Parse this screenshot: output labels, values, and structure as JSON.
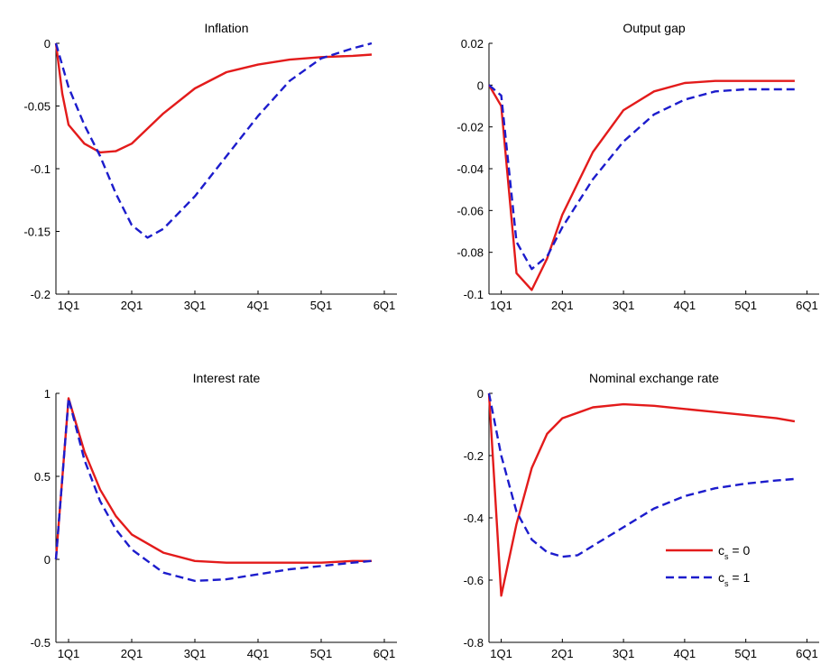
{
  "chart_data": [
    {
      "type": "line",
      "title": "Inflation",
      "xlim": [
        0.8,
        6.2
      ],
      "ylim": [
        -0.2,
        0
      ],
      "xticks": [
        1,
        2,
        3,
        4,
        5,
        6
      ],
      "xtick_labels": [
        "1Q1",
        "2Q1",
        "3Q1",
        "4Q1",
        "5Q1",
        "6Q1"
      ],
      "yticks": [
        0,
        -0.05,
        -0.1,
        -0.15,
        -0.2
      ],
      "ytick_labels": [
        "0",
        "-0.05",
        "-0.1",
        "-0.15",
        "-0.2"
      ],
      "series": [
        {
          "style": "solid",
          "color": "#e31b1b",
          "x": [
            0.8,
            0.9,
            1.0,
            1.25,
            1.5,
            1.75,
            2.0,
            2.5,
            3.0,
            3.5,
            4.0,
            4.5,
            5.0,
            5.5,
            5.8
          ],
          "y": [
            0,
            -0.04,
            -0.065,
            -0.08,
            -0.087,
            -0.086,
            -0.08,
            -0.056,
            -0.036,
            -0.023,
            -0.017,
            -0.013,
            -0.011,
            -0.01,
            -0.009
          ]
        },
        {
          "style": "dashed",
          "color": "#1c1ccc",
          "x": [
            0.8,
            1.0,
            1.25,
            1.5,
            1.75,
            2.0,
            2.25,
            2.5,
            3.0,
            3.5,
            4.0,
            4.5,
            5.0,
            5.5,
            5.8
          ],
          "y": [
            0,
            -0.035,
            -0.065,
            -0.09,
            -0.12,
            -0.145,
            -0.155,
            -0.148,
            -0.122,
            -0.09,
            -0.058,
            -0.03,
            -0.012,
            -0.004,
            0
          ]
        }
      ]
    },
    {
      "type": "line",
      "title": "Output gap",
      "xlim": [
        0.8,
        6.2
      ],
      "ylim": [
        -0.1,
        0.02
      ],
      "xticks": [
        1,
        2,
        3,
        4,
        5,
        6
      ],
      "xtick_labels": [
        "1Q1",
        "2Q1",
        "3Q1",
        "4Q1",
        "5Q1",
        "6Q1"
      ],
      "yticks": [
        0.02,
        0,
        -0.02,
        -0.04,
        -0.06,
        -0.08,
        -0.1
      ],
      "ytick_labels": [
        "0.02",
        "0",
        "-0.02",
        "-0.04",
        "-0.06",
        "-0.08",
        "-0.1"
      ],
      "series": [
        {
          "style": "solid",
          "color": "#e31b1b",
          "x": [
            0.8,
            1.0,
            1.25,
            1.5,
            1.75,
            2.0,
            2.5,
            3.0,
            3.5,
            4.0,
            4.5,
            5.0,
            5.5,
            5.8
          ],
          "y": [
            0,
            -0.01,
            -0.09,
            -0.098,
            -0.083,
            -0.062,
            -0.032,
            -0.012,
            -0.003,
            0.001,
            0.002,
            0.002,
            0.002,
            0.002
          ]
        },
        {
          "style": "dashed",
          "color": "#1c1ccc",
          "x": [
            0.8,
            1.0,
            1.25,
            1.5,
            1.75,
            2.0,
            2.5,
            3.0,
            3.5,
            4.0,
            4.5,
            5.0,
            5.5,
            5.8
          ],
          "y": [
            0,
            -0.005,
            -0.075,
            -0.088,
            -0.082,
            -0.068,
            -0.045,
            -0.027,
            -0.014,
            -0.007,
            -0.003,
            -0.002,
            -0.002,
            -0.002
          ]
        }
      ]
    },
    {
      "type": "line",
      "title": "Interest rate",
      "xlim": [
        0.8,
        6.2
      ],
      "ylim": [
        -0.5,
        1
      ],
      "xticks": [
        1,
        2,
        3,
        4,
        5,
        6
      ],
      "xtick_labels": [
        "1Q1",
        "2Q1",
        "3Q1",
        "4Q1",
        "5Q1",
        "6Q1"
      ],
      "yticks": [
        1,
        0.5,
        0,
        -0.5
      ],
      "ytick_labels": [
        "1",
        "0.5",
        "0",
        "-0.5"
      ],
      "series": [
        {
          "style": "solid",
          "color": "#e31b1b",
          "x": [
            0.8,
            1.0,
            1.25,
            1.5,
            1.75,
            2.0,
            2.5,
            3.0,
            3.5,
            4.0,
            4.5,
            5.0,
            5.5,
            5.8
          ],
          "y": [
            0,
            0.97,
            0.65,
            0.42,
            0.26,
            0.15,
            0.04,
            -0.01,
            -0.02,
            -0.02,
            -0.02,
            -0.02,
            -0.01,
            -0.01
          ]
        },
        {
          "style": "dashed",
          "color": "#1c1ccc",
          "x": [
            0.8,
            1.0,
            1.25,
            1.5,
            1.75,
            2.0,
            2.5,
            3.0,
            3.5,
            4.0,
            4.5,
            5.0,
            5.5,
            5.8
          ],
          "y": [
            0,
            0.97,
            0.6,
            0.35,
            0.18,
            0.06,
            -0.08,
            -0.13,
            -0.12,
            -0.09,
            -0.06,
            -0.04,
            -0.02,
            -0.01
          ]
        }
      ]
    },
    {
      "type": "line",
      "title": "Nominal exchange rate",
      "xlim": [
        0.8,
        6.2
      ],
      "ylim": [
        -0.8,
        0
      ],
      "xticks": [
        1,
        2,
        3,
        4,
        5,
        6
      ],
      "xtick_labels": [
        "1Q1",
        "2Q1",
        "3Q1",
        "4Q1",
        "5Q1",
        "6Q1"
      ],
      "yticks": [
        0,
        -0.2,
        -0.4,
        -0.6,
        -0.8
      ],
      "ytick_labels": [
        "0",
        "-0.2",
        "-0.4",
        "-0.6",
        "-0.8"
      ],
      "legend": {
        "position": "lower-right",
        "entries": [
          {
            "base": "c",
            "sub": "s",
            "text": " = 0"
          },
          {
            "base": "c",
            "sub": "s",
            "text": " = 1"
          }
        ]
      },
      "series": [
        {
          "name": "cs = 0",
          "style": "solid",
          "color": "#e31b1b",
          "x": [
            0.8,
            1.0,
            1.25,
            1.5,
            1.75,
            2.0,
            2.5,
            3.0,
            3.5,
            4.0,
            4.5,
            5.0,
            5.5,
            5.8
          ],
          "y": [
            0,
            -0.65,
            -0.42,
            -0.24,
            -0.13,
            -0.08,
            -0.045,
            -0.035,
            -0.04,
            -0.05,
            -0.06,
            -0.07,
            -0.08,
            -0.09
          ]
        },
        {
          "name": "cs = 1",
          "style": "dashed",
          "color": "#1c1ccc",
          "x": [
            0.8,
            1.0,
            1.25,
            1.5,
            1.75,
            2.0,
            2.25,
            2.5,
            3.0,
            3.5,
            4.0,
            4.5,
            5.0,
            5.5,
            5.8
          ],
          "y": [
            0,
            -0.2,
            -0.38,
            -0.47,
            -0.51,
            -0.525,
            -0.52,
            -0.49,
            -0.43,
            -0.37,
            -0.33,
            -0.305,
            -0.29,
            -0.28,
            -0.275
          ]
        }
      ]
    }
  ]
}
